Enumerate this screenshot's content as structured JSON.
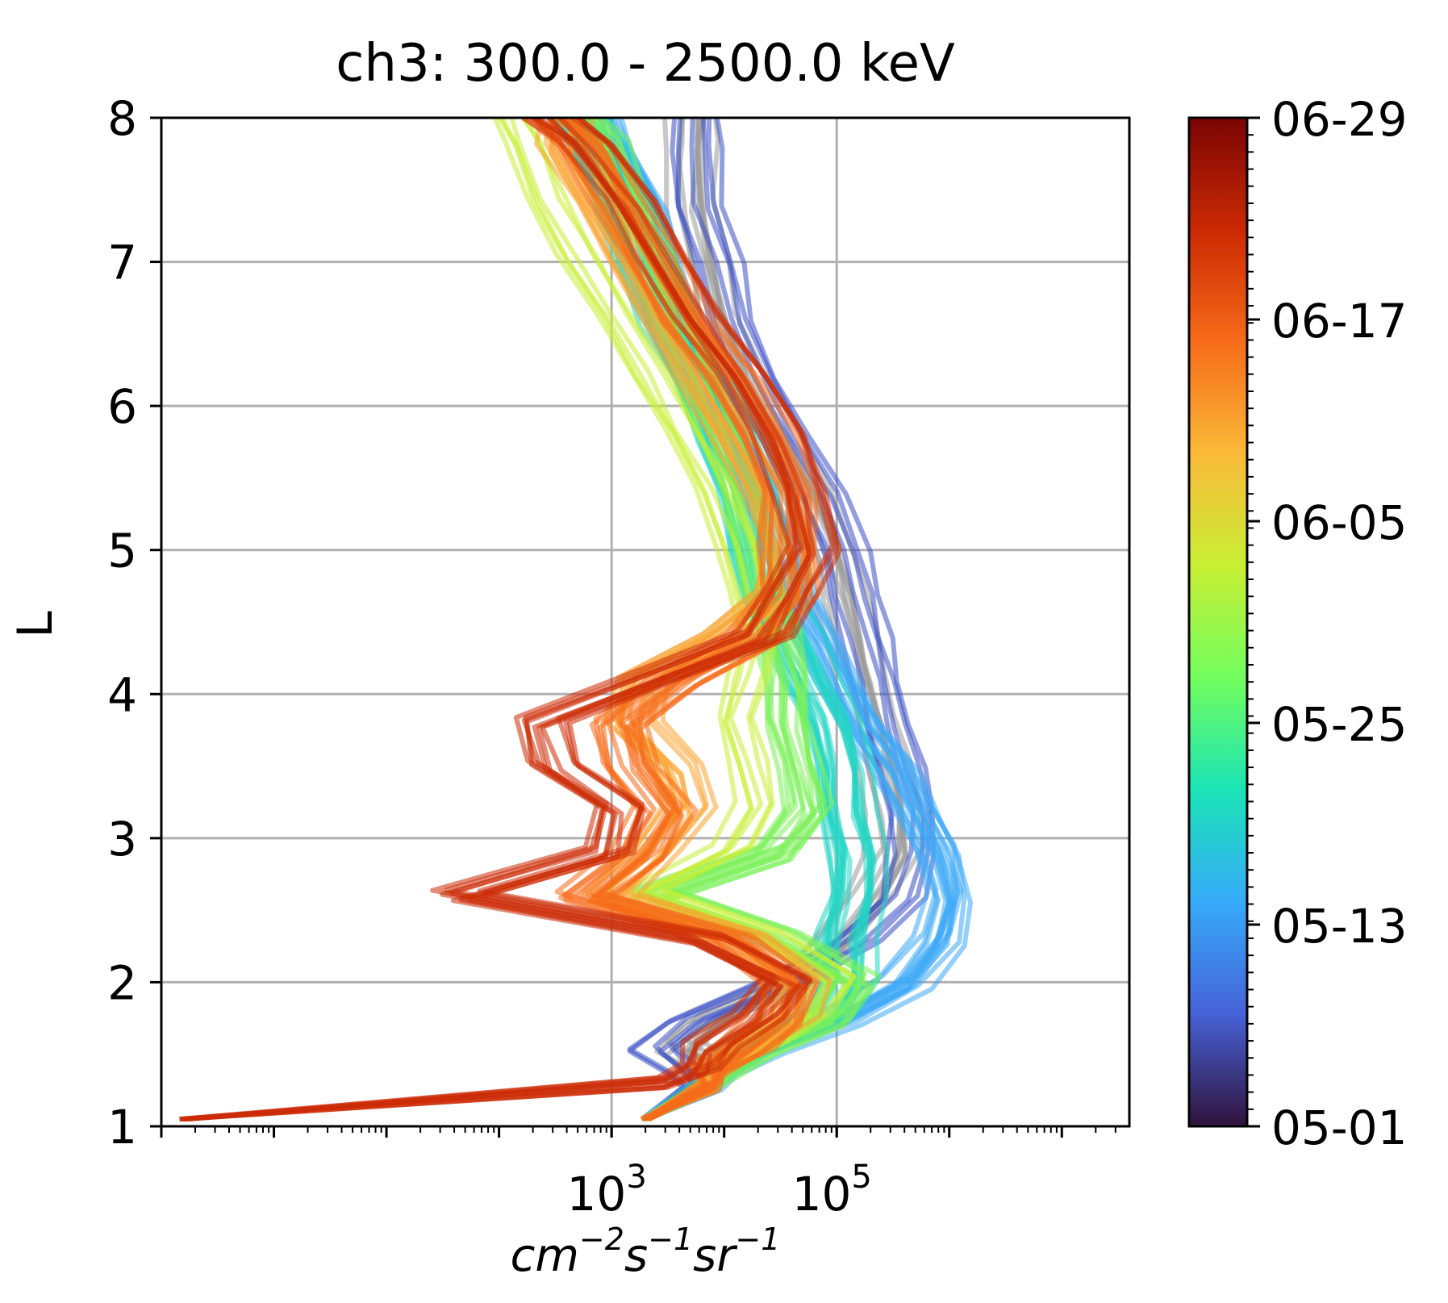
{
  "chart_data": {
    "type": "line",
    "title": "ch3: 300.0 - 2500.0 keV",
    "xlabel": "cm^{-2}s^{-1}sr^{-1}",
    "xlabel_parts": {
      "base1": "cm",
      "exp1": "−2",
      "base2": "s",
      "exp2": "−1",
      "base3": "sr",
      "exp3": "−1"
    },
    "ylabel": "L",
    "xscale": "log",
    "xlim_log10": [
      -1,
      7.6
    ],
    "ylim": [
      1,
      8
    ],
    "grid": true,
    "x_ticks": [
      {
        "base": "10",
        "exp": "3",
        "log10": 3
      },
      {
        "base": "10",
        "exp": "5",
        "log10": 5
      }
    ],
    "y_ticks": [
      {
        "label": "1",
        "value": 1
      },
      {
        "label": "2",
        "value": 2
      },
      {
        "label": "3",
        "value": 3
      },
      {
        "label": "4",
        "value": 4
      },
      {
        "label": "5",
        "value": 5
      },
      {
        "label": "6",
        "value": 6
      },
      {
        "label": "7",
        "value": 7
      },
      {
        "label": "8",
        "value": 8
      }
    ],
    "L_grid": [
      1.05,
      1.3,
      1.4,
      1.55,
      1.75,
      2.0,
      2.3,
      2.6,
      2.9,
      3.2,
      3.5,
      3.8,
      4.1,
      4.4,
      4.7,
      5.0,
      5.4,
      5.8,
      6.2,
      6.6,
      7.0,
      7.4,
      7.8,
      8.0
    ],
    "colorbar": {
      "label_positions": "right",
      "ticks": [
        "05-01",
        "05-13",
        "05-25",
        "06-05",
        "06-17",
        "06-29"
      ],
      "colors": [
        "#30123b",
        "#4662d7",
        "#36aaf9",
        "#1ae4b6",
        "#72fe5e",
        "#c8ef34",
        "#faba39",
        "#f66b19",
        "#cb2a04",
        "#7a0403"
      ]
    },
    "series_groups": [
      {
        "color": "#9a9a9a",
        "count": 10,
        "log10_flux": [
          3.3,
          3.9,
          3.9,
          3.6,
          3.9,
          4.6,
          5.0,
          5.3,
          5.5,
          5.5,
          5.4,
          5.3,
          5.2,
          5.1,
          5.0,
          4.9,
          4.7,
          4.4,
          4.1,
          3.9,
          3.8,
          3.7,
          3.7,
          3.7
        ]
      },
      {
        "color": "#3b4fc4",
        "count": 6,
        "log10_flux": [
          3.3,
          3.7,
          3.6,
          3.3,
          3.6,
          4.4,
          5.1,
          5.5,
          5.6,
          5.6,
          5.5,
          5.4,
          5.3,
          5.2,
          5.1,
          5.0,
          4.8,
          4.5,
          4.2,
          4.0,
          3.9,
          3.7,
          3.7,
          3.7
        ]
      },
      {
        "color": "#3ea9f5",
        "count": 16,
        "log10_flux": [
          3.3,
          3.9,
          4.0,
          4.3,
          5.0,
          5.6,
          5.9,
          6.0,
          5.9,
          5.7,
          5.5,
          5.2,
          5.0,
          4.8,
          4.6,
          4.5,
          4.3,
          4.1,
          3.9,
          3.6,
          3.4,
          3.3,
          3.0,
          2.9
        ]
      },
      {
        "color": "#22d6c4",
        "count": 18,
        "log10_flux": [
          3.3,
          3.9,
          4.0,
          4.3,
          4.9,
          5.1,
          5.1,
          5.2,
          5.2,
          5.1,
          5.1,
          5.0,
          4.8,
          4.6,
          4.4,
          4.3,
          4.2,
          4.0,
          3.8,
          3.5,
          3.3,
          3.1,
          2.9,
          2.7
        ]
      },
      {
        "color": "#7cf05a",
        "count": 14,
        "log10_flux": [
          3.3,
          3.9,
          4.0,
          4.3,
          4.9,
          5.1,
          4.4,
          3.3,
          4.4,
          4.7,
          4.6,
          4.5,
          4.5,
          4.4,
          4.3,
          4.2,
          4.1,
          3.9,
          3.7,
          3.5,
          3.3,
          3.1,
          2.9,
          2.7
        ]
      },
      {
        "color": "#c8ef34",
        "count": 6,
        "log10_flux": [
          3.3,
          3.9,
          4.0,
          4.3,
          4.7,
          4.9,
          4.3,
          3.2,
          4.0,
          4.2,
          4.1,
          4.0,
          4.1,
          4.2,
          4.1,
          4.0,
          3.8,
          3.5,
          3.2,
          2.9,
          2.6,
          2.3,
          2.1,
          2.0
        ]
      },
      {
        "color": "#f9a431",
        "count": 12,
        "log10_flux": [
          3.3,
          3.9,
          3.9,
          4.2,
          4.6,
          4.7,
          4.2,
          3.0,
          3.4,
          3.7,
          3.6,
          3.2,
          3.3,
          4.0,
          4.5,
          4.6,
          4.4,
          4.1,
          3.8,
          3.5,
          3.2,
          2.9,
          2.6,
          2.6
        ]
      },
      {
        "color": "#f66b19",
        "count": 14,
        "log10_flux": [
          3.3,
          3.9,
          3.9,
          4.2,
          4.5,
          4.6,
          4.1,
          2.8,
          3.3,
          3.5,
          3.2,
          3.1,
          3.6,
          4.3,
          4.6,
          4.6,
          4.6,
          4.4,
          4.1,
          3.7,
          3.4,
          3.1,
          2.8,
          2.5
        ]
      },
      {
        "color": "#cc2c05",
        "count": 10,
        "log10_flux": [
          -0.8,
          3.5,
          3.8,
          3.9,
          4.3,
          4.6,
          3.8,
          1.7,
          3.0,
          3.1,
          2.5,
          2.4,
          3.4,
          4.4,
          4.6,
          4.8,
          4.7,
          4.5,
          4.2,
          3.8,
          3.5,
          3.2,
          2.8,
          2.5
        ]
      }
    ]
  }
}
